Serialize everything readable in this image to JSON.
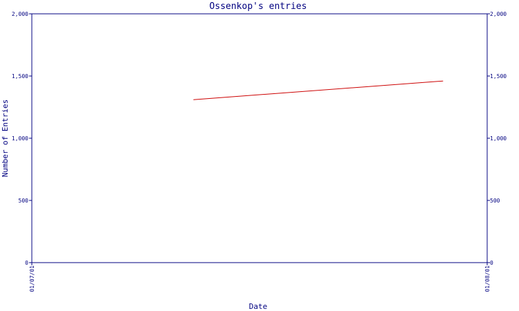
{
  "chart_data": {
    "type": "line",
    "title": "Ossenkop's entries",
    "xlabel": "Date",
    "ylabel": "Number of Entries",
    "x_ticks": [
      "01/07/01",
      "01/08/01"
    ],
    "y_ticks": [
      "0",
      "500",
      "1,000",
      "1,500",
      "2,000"
    ],
    "ylim": [
      0,
      2000
    ],
    "xlim": [
      "01/07/01",
      "01/08/01"
    ],
    "series": [
      {
        "color": "#cc0000",
        "points": [
          {
            "x": "01/07/12",
            "y": 1310
          },
          {
            "x": "01/07/29",
            "y": 1460
          }
        ]
      }
    ],
    "grid": false,
    "legend": "none",
    "colors": {
      "axis": "#000080",
      "line": "#cc0000"
    }
  }
}
